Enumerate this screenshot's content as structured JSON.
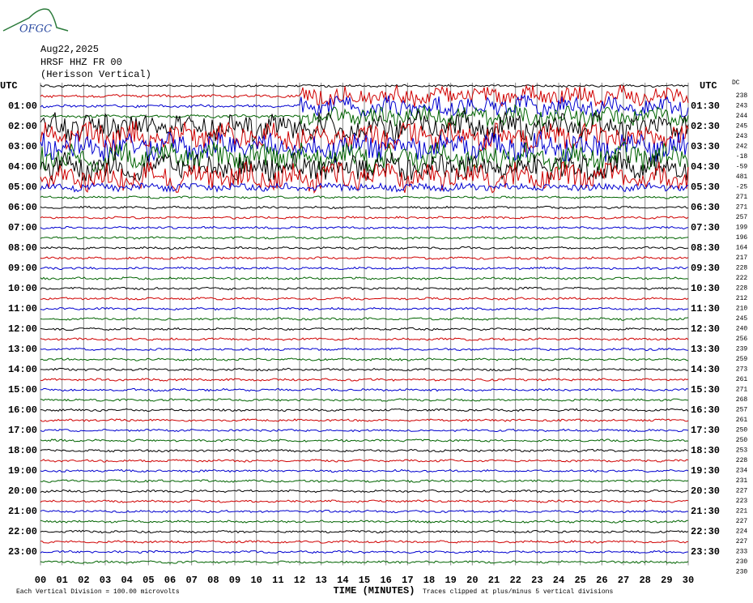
{
  "header": {
    "logo": "OFGC",
    "date": "Aug22,2025",
    "station": "HRSF HHZ FR 00",
    "location": "(Herisson Vertical)"
  },
  "plot": {
    "utc_left": "UTC",
    "utc_right": "UTC",
    "dc_label": "DC",
    "left_labels": [
      "01:00",
      "02:00",
      "03:00",
      "04:00",
      "05:00",
      "06:00",
      "07:00",
      "08:00",
      "09:00",
      "10:00",
      "11:00",
      "12:00",
      "13:00",
      "14:00",
      "15:00",
      "16:00",
      "17:00",
      "18:00",
      "19:00",
      "20:00",
      "21:00",
      "22:00",
      "23:00"
    ],
    "right_labels": [
      "01:30",
      "02:30",
      "03:30",
      "04:30",
      "05:30",
      "06:30",
      "07:30",
      "08:30",
      "09:30",
      "10:30",
      "11:30",
      "12:30",
      "13:30",
      "14:30",
      "15:30",
      "16:30",
      "17:30",
      "18:30",
      "19:30",
      "20:30",
      "21:30",
      "22:30",
      "23:30"
    ],
    "dc_values": [
      238,
      243,
      244,
      245,
      243,
      242,
      -18,
      -59,
      481,
      -25,
      271,
      271,
      257,
      199,
      196,
      164,
      217,
      228,
      222,
      228,
      212,
      210,
      245,
      240,
      256,
      239,
      259,
      273,
      261,
      271,
      268,
      257,
      261,
      250,
      250,
      253,
      228,
      234,
      231,
      227,
      223,
      221,
      227,
      224,
      227,
      233,
      230,
      230
    ],
    "x_ticks": [
      "00",
      "01",
      "02",
      "03",
      "04",
      "05",
      "06",
      "07",
      "08",
      "09",
      "10",
      "11",
      "12",
      "13",
      "14",
      "15",
      "16",
      "17",
      "18",
      "19",
      "20",
      "21",
      "22",
      "23",
      "24",
      "25",
      "26",
      "27",
      "28",
      "29",
      "30"
    ],
    "x_title": "TIME (MINUTES)",
    "footer_left": "Each Vertical Division =  100.00 microvolts",
    "footer_right": "Traces clipped at plus/minus 5 vertical divisions"
  }
}
